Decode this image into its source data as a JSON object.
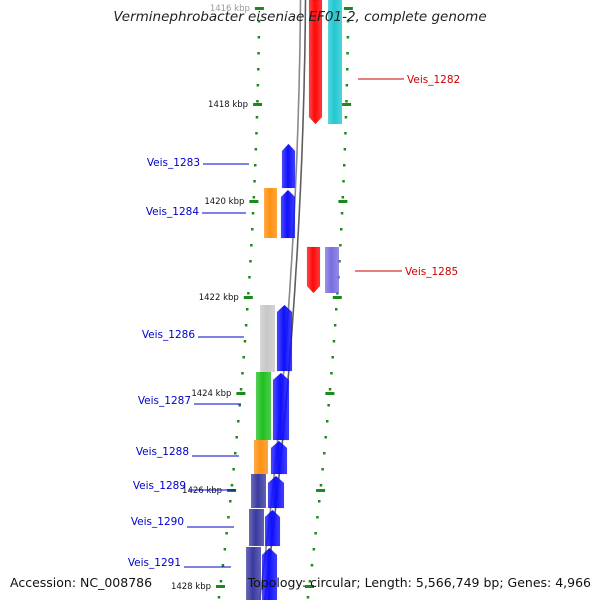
{
  "title": "Verminephrobacter eiseniae EF01-2, complete genome",
  "footer": {
    "accession": "Accession: NC_008786",
    "stats": "Topology: circular; Length: 5,566,749 bp; Genes: 4,966"
  },
  "colors": {
    "backbone": "#8a8a8a",
    "tick": "#1a8a1a",
    "forward_label": "#0000cc",
    "reverse_label": "#cc0000",
    "blue": "#1010ff",
    "red": "#ff0a0a",
    "cyan": "#22c8d2",
    "orange": "#ff9010",
    "gray": "#c8c8c8",
    "green": "#20c020",
    "slate": "#7a6ee0",
    "navy": "#3a3aa0"
  },
  "scale": {
    "kbp_labels": [
      "1416 kbp",
      "1418 kbp",
      "1420 kbp",
      "1422 kbp",
      "1424 kbp",
      "1426 kbp",
      "1428 kbp"
    ]
  },
  "genes": [
    {
      "label": "Veis_1282",
      "strand": "reverse"
    },
    {
      "label": "Veis_1283",
      "strand": "forward"
    },
    {
      "label": "Veis_1284",
      "strand": "forward"
    },
    {
      "label": "Veis_1285",
      "strand": "reverse"
    },
    {
      "label": "Veis_1286",
      "strand": "forward"
    },
    {
      "label": "Veis_1287",
      "strand": "forward"
    },
    {
      "label": "Veis_1288",
      "strand": "forward"
    },
    {
      "label": "Veis_1289",
      "strand": "forward"
    },
    {
      "label": "Veis_1290",
      "strand": "forward"
    },
    {
      "label": "Veis_1291",
      "strand": "forward"
    }
  ]
}
